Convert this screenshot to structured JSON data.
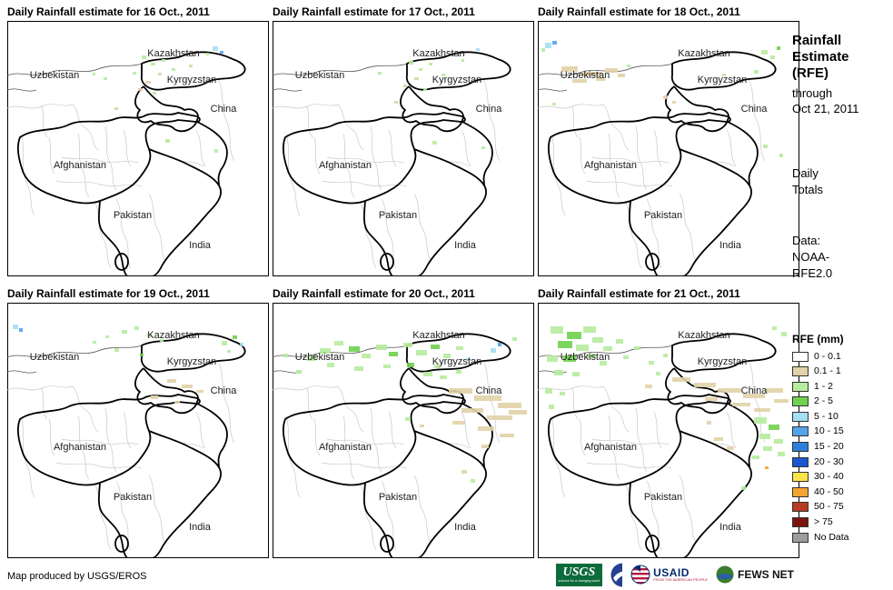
{
  "labels": {
    "kazakhstan": "Kazakhstan",
    "uzbekistan": "Uzbekistan",
    "kyrgyzstan": "Kyrgyzstan",
    "china": "China",
    "afghanistan": "Afghanistan",
    "pakistan": "Pakistan",
    "india": "India"
  },
  "panels": [
    {
      "title": "Daily Rainfall estimate for 16 Oct., 2011",
      "rain": [
        [
          148,
          38,
          5,
          4,
          2
        ],
        [
          158,
          46,
          5,
          3,
          2
        ],
        [
          170,
          42,
          4,
          3,
          2
        ],
        [
          181,
          52,
          4,
          3,
          2
        ],
        [
          166,
          57,
          4,
          3,
          1
        ],
        [
          152,
          66,
          6,
          3,
          1
        ],
        [
          144,
          74,
          5,
          3,
          1
        ],
        [
          160,
          78,
          4,
          3,
          2
        ],
        [
          138,
          56,
          4,
          3,
          2
        ],
        [
          226,
          28,
          6,
          5,
          4
        ],
        [
          234,
          33,
          4,
          3,
          5
        ],
        [
          219,
          35,
          3,
          3,
          2
        ],
        [
          174,
          130,
          5,
          4,
          2
        ],
        [
          228,
          141,
          4,
          4,
          2
        ],
        [
          118,
          95,
          4,
          3,
          1
        ],
        [
          106,
          62,
          4,
          3,
          2
        ],
        [
          94,
          57,
          3,
          3,
          2
        ],
        [
          200,
          48,
          4,
          3,
          1
        ]
      ]
    },
    {
      "title": "Daily Rainfall estimate for 17 Oct., 2011",
      "rain": [
        [
          150,
          44,
          5,
          4,
          2
        ],
        [
          161,
          52,
          4,
          3,
          2
        ],
        [
          172,
          46,
          4,
          3,
          2
        ],
        [
          156,
          62,
          5,
          3,
          1
        ],
        [
          144,
          70,
          4,
          3,
          1
        ],
        [
          166,
          74,
          4,
          3,
          2
        ],
        [
          176,
          132,
          5,
          4,
          2
        ],
        [
          230,
          138,
          4,
          3,
          2
        ],
        [
          116,
          56,
          4,
          3,
          2
        ],
        [
          134,
          88,
          4,
          3,
          1
        ],
        [
          186,
          58,
          4,
          3,
          2
        ],
        [
          208,
          42,
          3,
          3,
          2
        ],
        [
          224,
          30,
          4,
          3,
          4
        ]
      ]
    },
    {
      "title": "Daily Rainfall estimate for 18 Oct., 2011",
      "rain": [
        [
          26,
          50,
          18,
          6,
          1
        ],
        [
          48,
          56,
          22,
          5,
          1
        ],
        [
          74,
          52,
          14,
          5,
          1
        ],
        [
          38,
          64,
          16,
          4,
          1
        ],
        [
          64,
          62,
          10,
          4,
          1
        ],
        [
          88,
          58,
          8,
          4,
          1
        ],
        [
          8,
          24,
          7,
          6,
          4
        ],
        [
          16,
          22,
          5,
          4,
          5
        ],
        [
          4,
          30,
          4,
          4,
          2
        ],
        [
          246,
          32,
          7,
          5,
          2
        ],
        [
          256,
          38,
          5,
          4,
          2
        ],
        [
          238,
          54,
          5,
          4,
          2
        ],
        [
          263,
          28,
          4,
          4,
          3
        ],
        [
          138,
          82,
          5,
          4,
          1
        ],
        [
          148,
          88,
          4,
          3,
          1
        ],
        [
          248,
          136,
          5,
          4,
          2
        ],
        [
          266,
          146,
          4,
          4,
          2
        ],
        [
          16,
          90,
          4,
          3,
          2
        ],
        [
          98,
          48,
          4,
          3,
          2
        ],
        [
          203,
          58,
          4,
          3,
          1
        ]
      ]
    },
    {
      "title": "Daily Rainfall estimate for 19 Oct., 2011",
      "rain": [
        [
          6,
          24,
          6,
          5,
          4
        ],
        [
          13,
          28,
          4,
          4,
          5
        ],
        [
          126,
          30,
          6,
          4,
          2
        ],
        [
          140,
          26,
          5,
          4,
          2
        ],
        [
          154,
          34,
          5,
          4,
          2
        ],
        [
          168,
          40,
          4,
          3,
          2
        ],
        [
          118,
          50,
          5,
          4,
          2
        ],
        [
          146,
          56,
          4,
          3,
          3
        ],
        [
          236,
          42,
          6,
          5,
          2
        ],
        [
          248,
          36,
          5,
          4,
          3
        ],
        [
          256,
          44,
          4,
          4,
          4
        ],
        [
          242,
          52,
          4,
          3,
          2
        ],
        [
          176,
          84,
          10,
          4,
          1
        ],
        [
          192,
          90,
          12,
          4,
          1
        ],
        [
          158,
          102,
          8,
          4,
          1
        ],
        [
          208,
          96,
          8,
          3,
          1
        ],
        [
          184,
          108,
          6,
          3,
          1
        ],
        [
          94,
          42,
          4,
          3,
          2
        ],
        [
          108,
          36,
          4,
          3,
          2
        ]
      ]
    },
    {
      "title": "Daily Rainfall estimate for 20 Oct., 2011",
      "rain": [
        [
          38,
          58,
          10,
          6,
          2
        ],
        [
          52,
          50,
          12,
          6,
          2
        ],
        [
          68,
          42,
          10,
          5,
          2
        ],
        [
          84,
          48,
          12,
          6,
          3
        ],
        [
          98,
          56,
          10,
          5,
          2
        ],
        [
          114,
          46,
          12,
          6,
          2
        ],
        [
          128,
          54,
          10,
          5,
          3
        ],
        [
          144,
          44,
          10,
          5,
          2
        ],
        [
          158,
          52,
          12,
          6,
          2
        ],
        [
          174,
          46,
          10,
          5,
          3
        ],
        [
          188,
          56,
          8,
          5,
          2
        ],
        [
          202,
          48,
          8,
          4,
          2
        ],
        [
          60,
          66,
          8,
          5,
          2
        ],
        [
          90,
          70,
          10,
          5,
          2
        ],
        [
          122,
          68,
          8,
          4,
          2
        ],
        [
          148,
          66,
          8,
          5,
          3
        ],
        [
          178,
          68,
          6,
          4,
          2
        ],
        [
          240,
          50,
          6,
          5,
          4
        ],
        [
          248,
          44,
          4,
          4,
          5
        ],
        [
          214,
          60,
          4,
          4,
          4
        ],
        [
          166,
          76,
          10,
          5,
          2
        ],
        [
          184,
          80,
          8,
          4,
          2
        ],
        [
          202,
          74,
          6,
          4,
          2
        ],
        [
          194,
          94,
          26,
          6,
          1
        ],
        [
          222,
          102,
          30,
          6,
          1
        ],
        [
          248,
          110,
          26,
          6,
          1
        ],
        [
          208,
          116,
          24,
          5,
          1
        ],
        [
          236,
          124,
          28,
          5,
          1
        ],
        [
          260,
          118,
          20,
          5,
          1
        ],
        [
          226,
          136,
          18,
          5,
          1
        ],
        [
          198,
          130,
          14,
          4,
          1
        ],
        [
          250,
          144,
          16,
          4,
          1
        ],
        [
          208,
          184,
          6,
          4,
          1
        ],
        [
          218,
          194,
          5,
          4,
          2
        ],
        [
          146,
          126,
          6,
          4,
          2
        ],
        [
          162,
          134,
          5,
          3,
          1
        ],
        [
          230,
          156,
          8,
          4,
          1
        ],
        [
          26,
          74,
          6,
          4,
          2
        ],
        [
          12,
          56,
          5,
          4,
          2
        ],
        [
          264,
          38,
          5,
          4,
          2
        ]
      ]
    },
    {
      "title": "Daily Rainfall estimate for 21 Oct., 2011",
      "rain": [
        [
          14,
          26,
          14,
          8,
          2
        ],
        [
          32,
          32,
          16,
          8,
          3
        ],
        [
          50,
          26,
          14,
          7,
          2
        ],
        [
          22,
          42,
          16,
          8,
          3
        ],
        [
          42,
          46,
          14,
          7,
          2
        ],
        [
          60,
          38,
          12,
          6,
          2
        ],
        [
          10,
          58,
          12,
          7,
          2
        ],
        [
          28,
          58,
          14,
          7,
          3
        ],
        [
          54,
          56,
          10,
          5,
          2
        ],
        [
          72,
          48,
          10,
          5,
          2
        ],
        [
          86,
          40,
          8,
          5,
          2
        ],
        [
          68,
          64,
          8,
          5,
          2
        ],
        [
          18,
          74,
          10,
          6,
          2
        ],
        [
          38,
          76,
          8,
          5,
          2
        ],
        [
          8,
          94,
          8,
          6,
          2
        ],
        [
          24,
          98,
          6,
          4,
          2
        ],
        [
          12,
          112,
          6,
          5,
          2
        ],
        [
          94,
          58,
          6,
          4,
          2
        ],
        [
          106,
          48,
          6,
          4,
          2
        ],
        [
          122,
          64,
          6,
          4,
          2
        ],
        [
          138,
          56,
          5,
          4,
          2
        ],
        [
          130,
          76,
          5,
          4,
          2
        ],
        [
          148,
          82,
          20,
          5,
          1
        ],
        [
          172,
          88,
          24,
          5,
          1
        ],
        [
          198,
          94,
          26,
          5,
          1
        ],
        [
          226,
          100,
          24,
          5,
          1
        ],
        [
          250,
          94,
          20,
          5,
          1
        ],
        [
          214,
          110,
          20,
          4,
          1
        ],
        [
          238,
          116,
          18,
          4,
          1
        ],
        [
          184,
          104,
          14,
          4,
          1
        ],
        [
          260,
          106,
          16,
          4,
          1
        ],
        [
          238,
          126,
          14,
          7,
          2
        ],
        [
          254,
          134,
          12,
          6,
          3
        ],
        [
          244,
          144,
          12,
          6,
          2
        ],
        [
          260,
          150,
          10,
          5,
          2
        ],
        [
          248,
          158,
          10,
          5,
          2
        ],
        [
          264,
          164,
          8,
          5,
          2
        ],
        [
          236,
          168,
          8,
          4,
          2
        ],
        [
          250,
          180,
          4,
          3,
          9
        ],
        [
          194,
          148,
          10,
          4,
          1
        ],
        [
          118,
          90,
          8,
          4,
          1
        ],
        [
          208,
          158,
          8,
          4,
          1
        ],
        [
          224,
          202,
          5,
          4,
          2
        ],
        [
          186,
          130,
          5,
          4,
          1
        ],
        [
          268,
          32,
          6,
          5,
          2
        ],
        [
          258,
          26,
          5,
          4,
          2
        ]
      ]
    }
  ],
  "sidebar": {
    "title": [
      "Rainfall",
      "Estimate",
      "(RFE)"
    ],
    "subtitle": [
      "through",
      "Oct 21, 2011"
    ],
    "period": [
      "Daily",
      "Totals"
    ],
    "data_source": [
      "Data:",
      "NOAA-",
      "RFE2.0"
    ]
  },
  "legend": {
    "title": "RFE (mm)",
    "items": [
      {
        "label": "0 - 0.1",
        "color": "#ffffff"
      },
      {
        "label": "0.1 - 1",
        "color": "#e2d2a8"
      },
      {
        "label": "1 - 2",
        "color": "#b8ec9e"
      },
      {
        "label": "2 - 5",
        "color": "#6fd14f"
      },
      {
        "label": "5 - 10",
        "color": "#a5dff2"
      },
      {
        "label": "10 - 15",
        "color": "#54a3e8"
      },
      {
        "label": "15 - 20",
        "color": "#2e7fd9"
      },
      {
        "label": "20 - 30",
        "color": "#1a55cf"
      },
      {
        "label": "30 - 40",
        "color": "#f8e54a"
      },
      {
        "label": "40 - 50",
        "color": "#f5a52f"
      },
      {
        "label": "50 - 75",
        "color": "#b93a24"
      },
      {
        "label": "> 75",
        "color": "#7c120c"
      },
      {
        "label": "No Data",
        "color": "#9c9c9c"
      }
    ]
  },
  "footer": {
    "attribution": "Map produced by USGS/EROS",
    "logos": {
      "usgs": {
        "name": "USGS",
        "tagline": "science for a changing world"
      },
      "usaid": {
        "name": "USAID",
        "tagline": "FROM THE AMERICAN PEOPLE"
      },
      "fewsnet": "FEWS NET"
    }
  }
}
